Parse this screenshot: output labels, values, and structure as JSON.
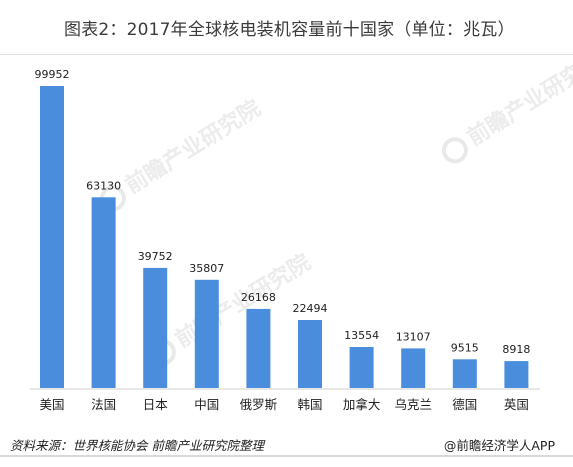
{
  "chart_data": {
    "type": "bar",
    "title": "图表2：2017年全球核电装机容量前十国家（单位：兆瓦）",
    "categories": [
      "美国",
      "法国",
      "日本",
      "中国",
      "俄罗斯",
      "韩国",
      "加拿大",
      "乌克兰",
      "德国",
      "英国"
    ],
    "values": [
      99952,
      63130,
      39752,
      35807,
      26168,
      22494,
      13554,
      13107,
      9515,
      8918
    ],
    "data_labels": [
      "99952",
      "63130",
      "39752",
      "35807",
      "26168",
      "22494",
      "13554",
      "13107",
      "9515",
      "8918"
    ],
    "ylim": [
      0,
      99952
    ],
    "grid": false,
    "legend": "none",
    "bar_color": "#4a8ddc",
    "source": "资料来源：世界核能协会 前瞻产业研究院整理",
    "credit": "@前瞻经济学人APP",
    "watermark": "前瞻产业研究院"
  }
}
